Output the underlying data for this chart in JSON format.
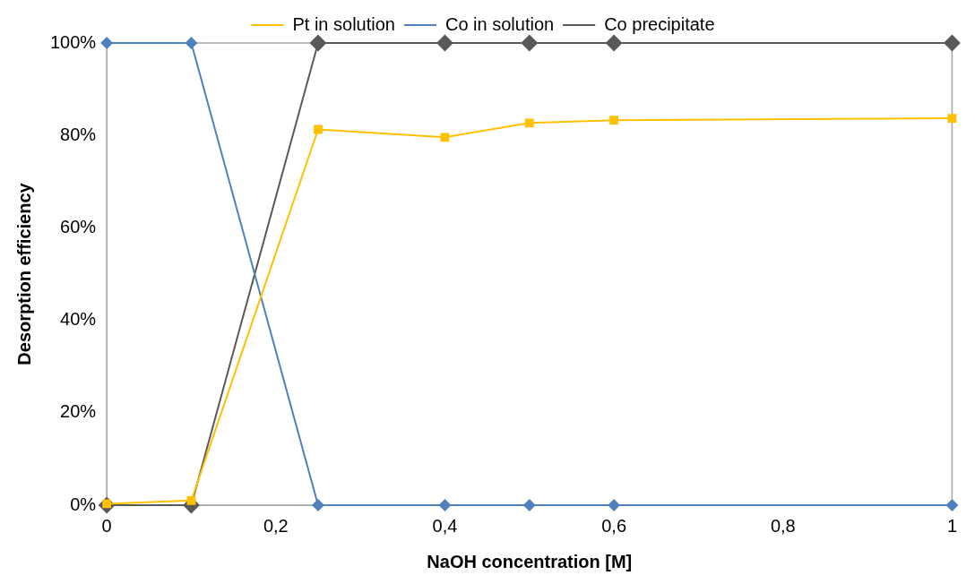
{
  "chart_data": {
    "type": "line",
    "xlabel": "NaOH concentration [M]",
    "ylabel": "Desorption efficiency",
    "xlim": [
      0,
      1
    ],
    "xticks": [
      0,
      {
        "value": 0.2,
        "label": "0,2"
      },
      {
        "value": 0.4,
        "label": "0,4"
      },
      {
        "value": 0.6,
        "label": "0,6"
      },
      {
        "value": 0.8,
        "label": "0,8"
      },
      1
    ],
    "ylim": [
      0,
      100
    ],
    "yticks": [
      {
        "value": 0,
        "label": "0%"
      },
      {
        "value": 20,
        "label": "20%"
      },
      {
        "value": 40,
        "label": "40%"
      },
      {
        "value": 60,
        "label": "60%"
      },
      {
        "value": 80,
        "label": "80%"
      },
      {
        "value": 100,
        "label": "100%"
      }
    ],
    "x": [
      0,
      0.1,
      0.25,
      0.4,
      0.5,
      0.6,
      1
    ],
    "series": [
      {
        "name": "Pt in solution",
        "color": "#ffc000",
        "marker": "square",
        "values": [
          0.3,
          1,
          81.3,
          79.6,
          82.7,
          83.3,
          83.7
        ]
      },
      {
        "name": "Co in solution",
        "color": "#4f81bd",
        "marker": "diamond",
        "values": [
          100,
          100,
          0,
          0,
          0,
          0,
          0
        ]
      },
      {
        "name": "Co precipitate",
        "color": "#595959",
        "marker": "diamond",
        "values": [
          0,
          0,
          100,
          100,
          100,
          100,
          100
        ]
      }
    ],
    "grid": false,
    "legend": "top",
    "line_style": "solid"
  }
}
